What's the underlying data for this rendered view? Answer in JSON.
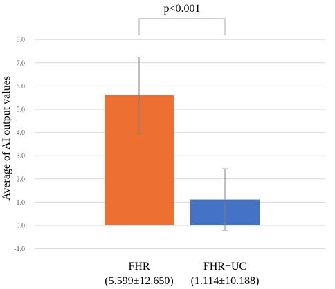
{
  "chart_data": {
    "type": "bar",
    "categories": [
      "FHR",
      "FHR+UC"
    ],
    "category_sublabels": [
      "(5.599±12.650)",
      "(1.114±10.188)"
    ],
    "values": [
      5.599,
      1.114
    ],
    "error_bars": [
      1.65,
      1.32
    ],
    "colors": [
      "#ED7032",
      "#4472C4"
    ],
    "xlabel": "",
    "ylabel": "Average of AI output values",
    "ylim": [
      -1.0,
      8.0
    ],
    "yticks": [
      "8.0",
      "7.0",
      "6.0",
      "5.0",
      "4.0",
      "3.0",
      "2.0",
      "1.0",
      "0.0",
      "-1.0"
    ],
    "grid": true,
    "annotation": "p<0.001"
  }
}
